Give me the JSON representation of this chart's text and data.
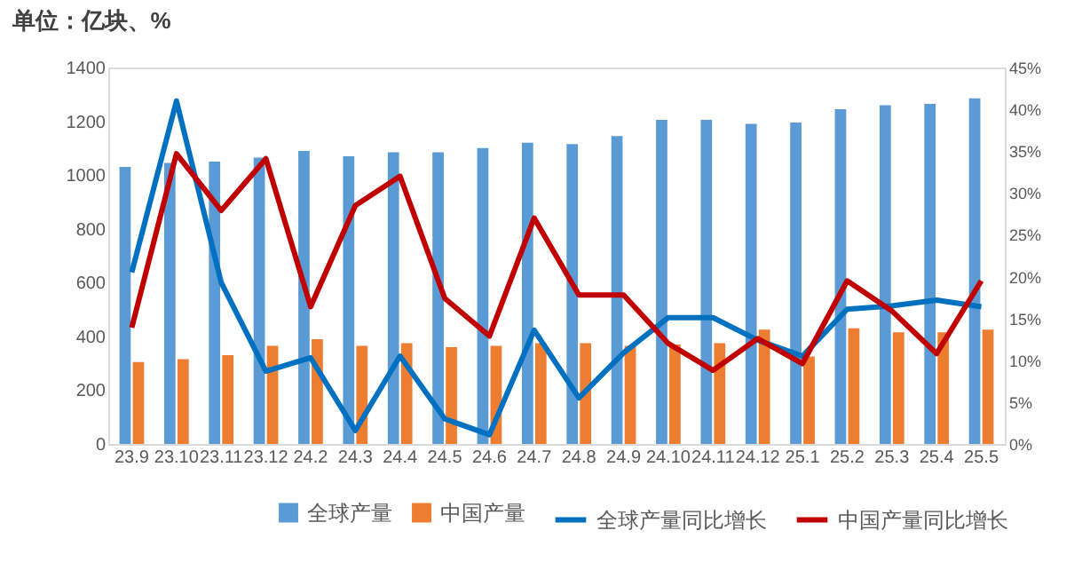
{
  "chart_data": {
    "type": "bar",
    "title": "单位：亿块、%",
    "categories": [
      "23.9",
      "23.10",
      "23.11",
      "23.12",
      "24.2",
      "24.3",
      "24.4",
      "24.5",
      "24.6",
      "24.7",
      "24.8",
      "24.9",
      "24.10",
      "24.11",
      "24.12",
      "25.1",
      "25.2",
      "25.3",
      "25.4",
      "25.5"
    ],
    "series": [
      {
        "name": "全球产量",
        "color": "#5b9bd5",
        "values": [
          1030,
          1045,
          1050,
          1065,
          1090,
          1070,
          1085,
          1085,
          1100,
          1120,
          1115,
          1145,
          1205,
          1205,
          1190,
          1195,
          1245,
          1260,
          1265,
          1285
        ]
      },
      {
        "name": "中国产量",
        "color": "#ed7d31",
        "values": [
          305,
          315,
          330,
          365,
          390,
          365,
          375,
          360,
          365,
          375,
          375,
          365,
          370,
          375,
          425,
          325,
          430,
          415,
          415,
          425
        ]
      },
      {
        "name": "全球产量同比增长",
        "type": "line",
        "axis": "y2",
        "color": "#0070c0",
        "values": [
          20.5,
          41,
          19.3,
          8.7,
          10.3,
          1.6,
          10.5,
          3.0,
          1.1,
          13.6,
          5.5,
          10.9,
          15.1,
          15.1,
          12.4,
          10.5,
          16.1,
          16.5,
          17.2,
          16.4
        ]
      },
      {
        "name": "中国产量同比增长",
        "type": "line",
        "axis": "y2",
        "color": "#c00000",
        "values": [
          13.9,
          34.7,
          27.9,
          34.1,
          16.4,
          28.5,
          32.0,
          17.4,
          12.9,
          27.0,
          17.8,
          17.8,
          12.0,
          8.8,
          12.6,
          9.6,
          19.5,
          15.9,
          10.8,
          19.5
        ]
      }
    ],
    "ylim": [
      0,
      1400
    ],
    "yticks": [
      0,
      200,
      400,
      600,
      800,
      1000,
      1200,
      1400
    ],
    "y2lim": [
      0,
      45
    ],
    "y2ticks": [
      {
        "value": 0,
        "label": "0%"
      },
      {
        "value": 5,
        "label": "5%"
      },
      {
        "value": 10,
        "label": "10%"
      },
      {
        "value": 15,
        "label": "15%"
      },
      {
        "value": 20,
        "label": "20%"
      },
      {
        "value": 25,
        "label": "25%"
      },
      {
        "value": 30,
        "label": "30%"
      },
      {
        "value": 35,
        "label": "35%"
      },
      {
        "value": 40,
        "label": "40%"
      },
      {
        "value": 45,
        "label": "45%"
      }
    ],
    "grid": false,
    "legend": "bottom",
    "line_style": "solid",
    "marker": "none"
  }
}
